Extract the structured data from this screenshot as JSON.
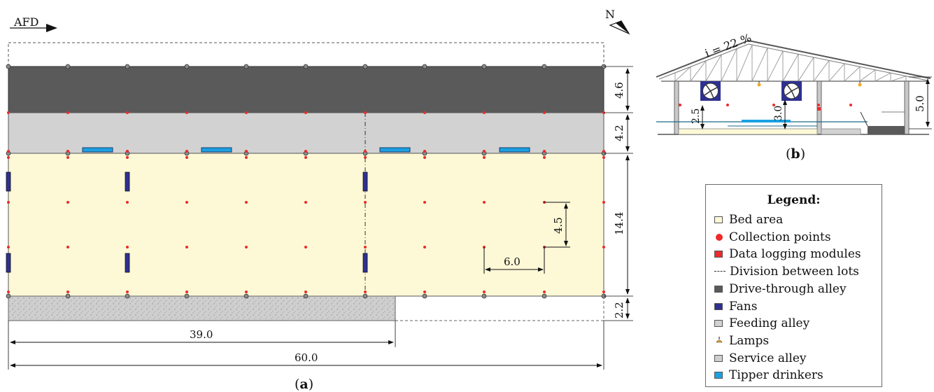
{
  "plan": {
    "direction_label": "AFD",
    "north_label": "N",
    "caption_label": "a",
    "dims": {
      "drive_alley_width": "4.6",
      "feeding_alley_width": "4.2",
      "bed_width": "14.4",
      "service_alley_width": "2.2",
      "point_spacing_y": "4.5",
      "point_spacing_x": "6.0",
      "service_alley_length": "39.0",
      "total_length": "60.0"
    }
  },
  "section": {
    "slope_label": "i = 22 %",
    "caption_label": "b",
    "dims": {
      "height_2_5": "2.5",
      "height_3_0": "3.0",
      "height_5_0": "5.0"
    }
  },
  "legend": {
    "title": "Legend:",
    "items": [
      {
        "label": "Bed area",
        "kind": "swatch",
        "color": "#fdf8d6"
      },
      {
        "label": "Collection points",
        "kind": "dot",
        "color": "#ee2a2a"
      },
      {
        "label": "Data logging modules",
        "kind": "swatch",
        "color": "#ee2a2a"
      },
      {
        "label": "Division between lots",
        "kind": "dashdot",
        "color": "#333333"
      },
      {
        "label": "Drive-through alley",
        "kind": "swatch",
        "color": "#5a5a5a"
      },
      {
        "label": "Fans",
        "kind": "swatch",
        "color": "#2e3192"
      },
      {
        "label": "Feeding alley",
        "kind": "swatch",
        "color": "#d2d2d2"
      },
      {
        "label": "Lamps",
        "kind": "lamp",
        "color": "#f5a623"
      },
      {
        "label": "Service alley",
        "kind": "swatch",
        "color": "#cfcfcf"
      },
      {
        "label": "Tipper drinkers",
        "kind": "swatch",
        "color": "#1ba1e2"
      }
    ]
  },
  "colors": {
    "drive_alley": "#5a5a5a",
    "feeding_alley": "#d2d2d2",
    "bed_area": "#fdf8d6",
    "service_alley": "#cfcfcf",
    "fan": "#2e3192",
    "drinker": "#1ba1e2",
    "collection_point": "#ee2a2a"
  }
}
